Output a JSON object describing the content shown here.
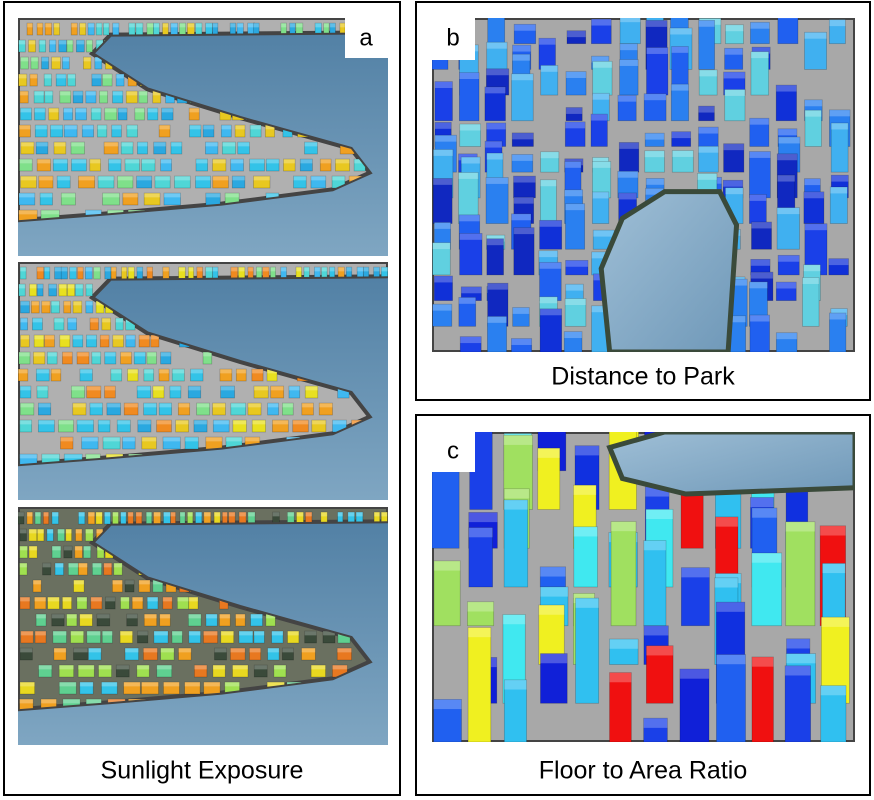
{
  "panels": [
    {
      "label": "a",
      "caption": "Sunlight Exposure"
    },
    {
      "label": "b",
      "caption": "Distance to Park"
    },
    {
      "label": "c",
      "caption": "Floor to Area Ratio"
    }
  ]
}
